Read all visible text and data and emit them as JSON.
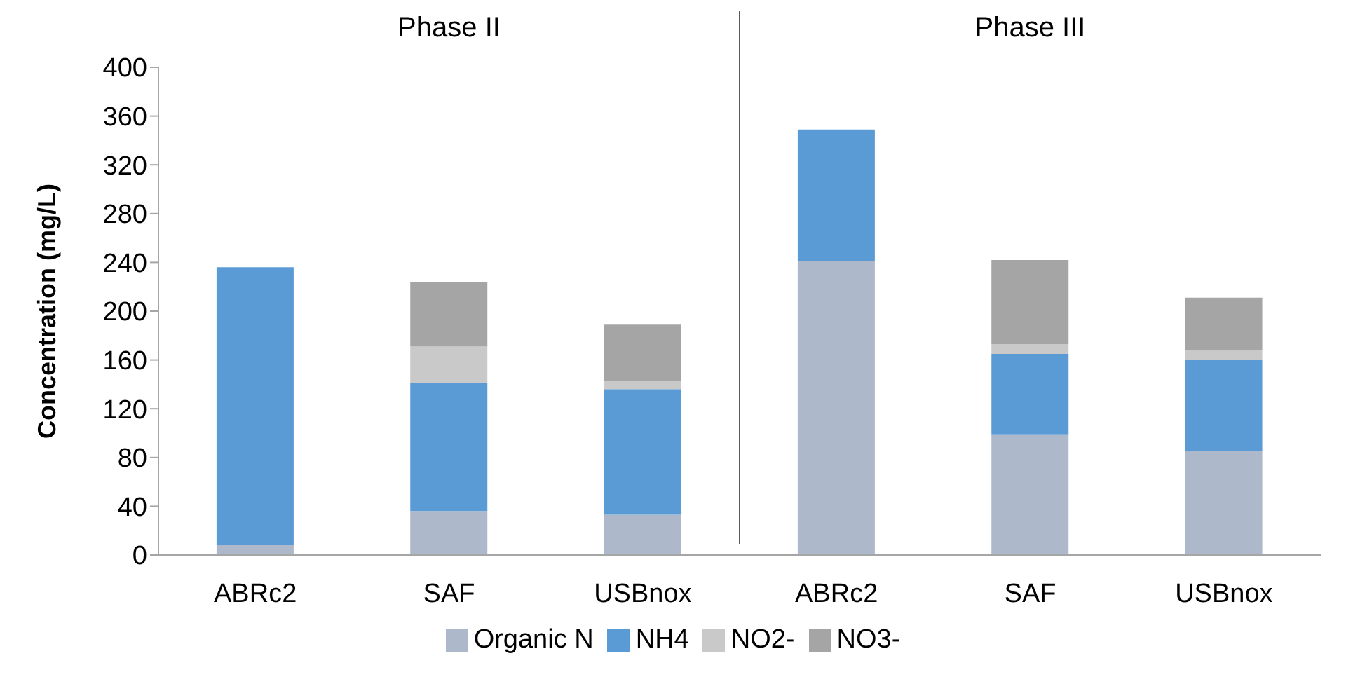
{
  "chart_data": {
    "type": "bar",
    "stacked": true,
    "ylabel": "Concentration (mg/L)",
    "categories": [
      "ABRc2",
      "SAF",
      "USBnox",
      "ABRc2",
      "SAF",
      "USBnox"
    ],
    "series": [
      {
        "name": "Organic N",
        "color": "#adb9ca",
        "values": [
          8,
          36,
          33,
          241,
          99,
          85
        ]
      },
      {
        "name": "NH4",
        "color": "#5b9bd5",
        "values": [
          228,
          105,
          103,
          108,
          66,
          75
        ]
      },
      {
        "name": "NO2-",
        "color": "#c9c9c9",
        "values": [
          null,
          30,
          7,
          null,
          8,
          8
        ]
      },
      {
        "name": "NO3-",
        "color": "#a5a5a5",
        "values": [
          null,
          53,
          46,
          null,
          69,
          43
        ]
      }
    ],
    "ylim": [
      0,
      400
    ],
    "yticks": [
      0,
      40,
      80,
      120,
      160,
      200,
      240,
      280,
      320,
      360,
      400
    ],
    "grid": false,
    "legend": "bottom",
    "annotations": [
      "Phase II",
      "Phase III"
    ]
  }
}
